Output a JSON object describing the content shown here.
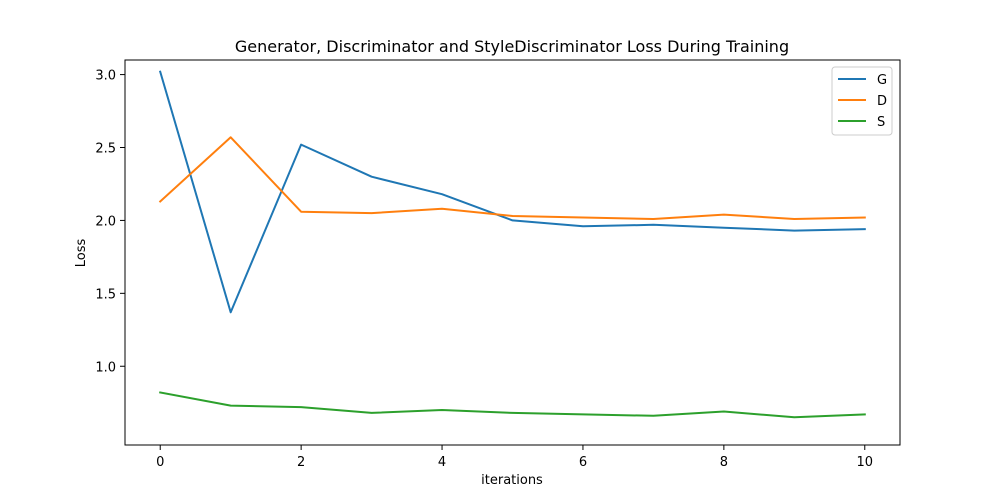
{
  "chart_data": {
    "type": "line",
    "title": "Generator, Discriminator and StyleDiscriminator Loss During Training",
    "xlabel": "iterations",
    "ylabel": "Loss",
    "xlim": [
      -0.5,
      10.5
    ],
    "ylim": [
      0.46,
      3.1
    ],
    "xticks": [
      0,
      2,
      4,
      6,
      8,
      10
    ],
    "xtick_labels": [
      "0",
      "2",
      "4",
      "6",
      "8",
      "10"
    ],
    "yticks": [
      1.0,
      1.5,
      2.0,
      2.5,
      3.0
    ],
    "ytick_labels": [
      "1.0",
      "1.5",
      "2.0",
      "2.5",
      "3.0"
    ],
    "grid": false,
    "legend_position": "top-right",
    "x": [
      0,
      1,
      2,
      3,
      4,
      5,
      6,
      7,
      8,
      9,
      10
    ],
    "series": [
      {
        "name": "G",
        "color": "#1f77b4",
        "values": [
          3.02,
          1.37,
          2.52,
          2.3,
          2.18,
          2.0,
          1.96,
          1.97,
          1.95,
          1.93,
          1.94
        ]
      },
      {
        "name": "D",
        "color": "#ff7f0e",
        "values": [
          2.13,
          2.57,
          2.06,
          2.05,
          2.08,
          2.03,
          2.02,
          2.01,
          2.04,
          2.01,
          2.02
        ]
      },
      {
        "name": "S",
        "color": "#2ca02c",
        "values": [
          0.82,
          0.73,
          0.72,
          0.68,
          0.7,
          0.68,
          0.67,
          0.66,
          0.69,
          0.65,
          0.67
        ]
      }
    ]
  }
}
